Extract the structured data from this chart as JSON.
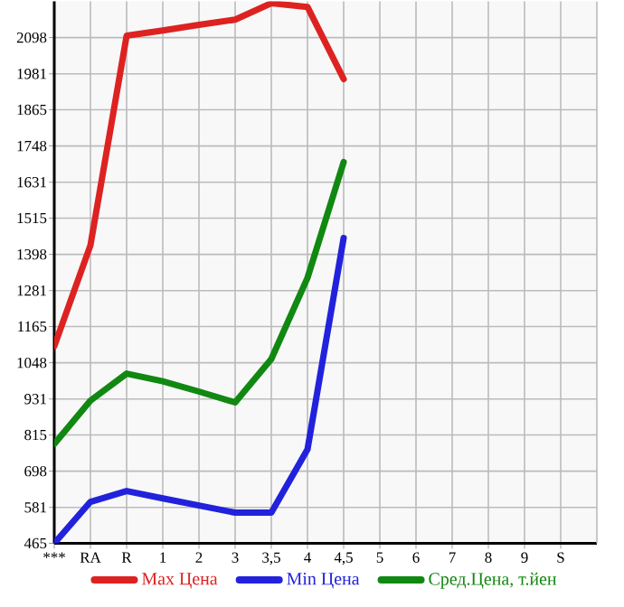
{
  "chart_data": {
    "type": "line",
    "categories": [
      "***",
      "RA",
      "R",
      "1",
      "2",
      "3",
      "3,5",
      "4",
      "4,5",
      "5",
      "6",
      "7",
      "8",
      "9",
      "S"
    ],
    "series": [
      {
        "name": "Max Цена",
        "color": "#dd2222",
        "values": [
          1101,
          1427,
          2104,
          2121,
          2139,
          2156,
          2209,
          2197,
          1964,
          null,
          null,
          null,
          null,
          null,
          null
        ]
      },
      {
        "name": "Min Цена",
        "color": "#2222dd",
        "values": [
          465,
          599,
          634,
          610,
          587,
          564,
          564,
          768,
          1451,
          null,
          null,
          null,
          null,
          null,
          null
        ]
      },
      {
        "name": "Сред.Цена, т.йен",
        "color": "#118811",
        "values": [
          786,
          926,
          1013,
          988,
          955,
          920,
          1060,
          1322,
          1696,
          null,
          null,
          null,
          null,
          null,
          null
        ]
      }
    ],
    "ylim": [
      465,
      2215
    ],
    "yticks": [
      465,
      581,
      698,
      815,
      931,
      1048,
      1165,
      1281,
      1398,
      1515,
      1631,
      1748,
      1865,
      1981,
      2098
    ],
    "grid": true,
    "legend": "bottom",
    "marker": "none",
    "line_style": "solid"
  }
}
